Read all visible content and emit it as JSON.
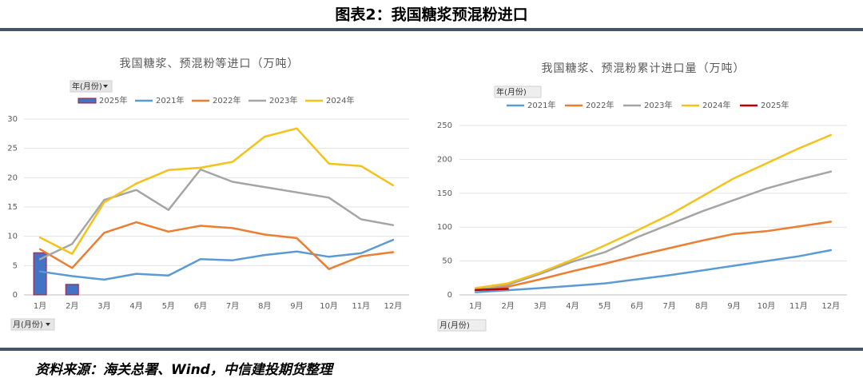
{
  "header": {
    "title": "图表2：我国糖浆预混粉进口"
  },
  "source": "资料来源：海关总署、Wind，中信建投期货整理",
  "chart_data": [
    {
      "type": "combo",
      "title": "我国糖浆、预混粉等进口（万吨）",
      "filter_labels": [
        "年(月份)",
        "月(月份)"
      ],
      "categories": [
        "1月",
        "2月",
        "3月",
        "4月",
        "5月",
        "6月",
        "7月",
        "8月",
        "9月",
        "10月",
        "11月",
        "12月"
      ],
      "ylim": [
        0,
        30
      ],
      "yticks": [
        0,
        5,
        10,
        15,
        20,
        25,
        30
      ],
      "grid": true,
      "series": [
        {
          "name": "2025年",
          "chart_type": "bar",
          "color": "#4472c4",
          "values": [
            7.2,
            1.8,
            null,
            null,
            null,
            null,
            null,
            null,
            null,
            null,
            null,
            null
          ]
        },
        {
          "name": "2021年",
          "color": "#5b9bd5",
          "values": [
            4.0,
            3.2,
            2.6,
            3.6,
            3.3,
            6.1,
            5.9,
            6.8,
            7.4,
            6.5,
            7.1,
            9.4
          ]
        },
        {
          "name": "2022年",
          "color": "#ed7d31",
          "values": [
            7.8,
            4.6,
            10.6,
            12.4,
            10.8,
            11.8,
            11.4,
            10.3,
            9.7,
            4.4,
            6.6,
            7.3
          ]
        },
        {
          "name": "2023年",
          "color": "#a5a5a5",
          "values": [
            6.1,
            8.7,
            16.2,
            17.9,
            14.5,
            21.4,
            19.3,
            18.4,
            17.5,
            16.6,
            12.9,
            11.9
          ]
        },
        {
          "name": "2024年",
          "color": "#f5c21b",
          "values": [
            9.8,
            7.0,
            15.8,
            19.0,
            21.3,
            21.7,
            22.7,
            27.0,
            28.4,
            22.4,
            22.0,
            18.7
          ]
        }
      ]
    },
    {
      "type": "line",
      "title": "我国糖浆、预混粉累计进口量（万吨）",
      "filter_labels": [
        "年(月份)",
        "月(月份)"
      ],
      "categories": [
        "1月",
        "2月",
        "3月",
        "4月",
        "5月",
        "6月",
        "7月",
        "8月",
        "9月",
        "10月",
        "11月",
        "12月"
      ],
      "ylim": [
        0,
        250
      ],
      "yticks": [
        0,
        50,
        100,
        150,
        200,
        250
      ],
      "grid": true,
      "series": [
        {
          "name": "2021年",
          "color": "#5b9bd5",
          "values": [
            4,
            7,
            10,
            13.5,
            17,
            23,
            29,
            36,
            43,
            50,
            57,
            66
          ]
        },
        {
          "name": "2022年",
          "color": "#ed7d31",
          "values": [
            8,
            12,
            23,
            35,
            46,
            58,
            69,
            80,
            90,
            94,
            101,
            108
          ]
        },
        {
          "name": "2023年",
          "color": "#a5a5a5",
          "values": [
            6,
            15,
            31,
            49,
            63,
            85,
            104,
            123,
            140,
            157,
            170,
            182
          ]
        },
        {
          "name": "2024年",
          "color": "#f5c21b",
          "values": [
            10,
            17,
            33,
            52,
            73,
            95,
            118,
            145,
            172,
            194,
            216,
            236
          ]
        },
        {
          "name": "2025年",
          "color": "#c00000",
          "values": [
            7.2,
            9,
            null,
            null,
            null,
            null,
            null,
            null,
            null,
            null,
            null,
            null
          ]
        }
      ]
    }
  ]
}
